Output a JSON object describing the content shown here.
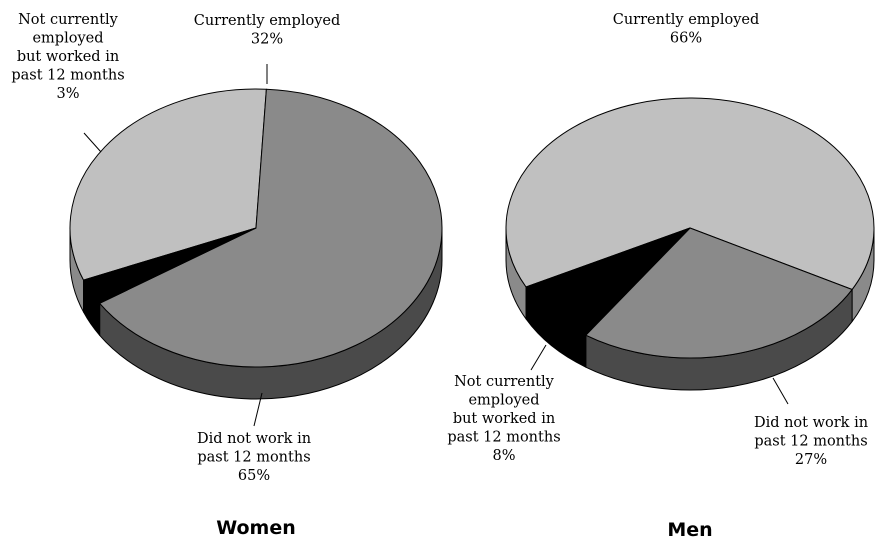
{
  "chart_data": [
    {
      "type": "pie",
      "title": "Women",
      "start_angle_deg": 158,
      "slices": [
        {
          "key": "employed",
          "label_lines": [
            "Currently employed"
          ],
          "value_label": "32%",
          "value": 32,
          "color": "#c0c0c0",
          "side_color": "#8a8a8a"
        },
        {
          "key": "not_worked",
          "label_lines": [
            "Did not work in",
            "past 12 months"
          ],
          "value_label": "65%",
          "value": 65,
          "color": "#8a8a8a",
          "side_color": "#4a4a4a"
        },
        {
          "key": "past12",
          "label_lines": [
            "Not currently",
            "employed",
            "but worked in",
            "past 12 months"
          ],
          "value_label": "3%",
          "value": 3,
          "color": "#000000",
          "side_color": "#000000"
        }
      ]
    },
    {
      "type": "pie",
      "title": "Men",
      "start_angle_deg": 153,
      "slices": [
        {
          "key": "employed",
          "label_lines": [
            "Currently employed"
          ],
          "value_label": "66%",
          "value": 66,
          "color": "#c0c0c0",
          "side_color": "#8a8a8a"
        },
        {
          "key": "not_worked",
          "label_lines": [
            "Did not work in",
            "past 12 months"
          ],
          "value_label": "27%",
          "value": 27,
          "color": "#8a8a8a",
          "side_color": "#4a4a4a"
        },
        {
          "key": "past12",
          "label_lines": [
            "Not currently",
            "employed",
            "but worked in",
            "past 12 months"
          ],
          "value_label": "8%",
          "value": 8,
          "color": "#000000",
          "side_color": "#000000"
        }
      ]
    }
  ]
}
